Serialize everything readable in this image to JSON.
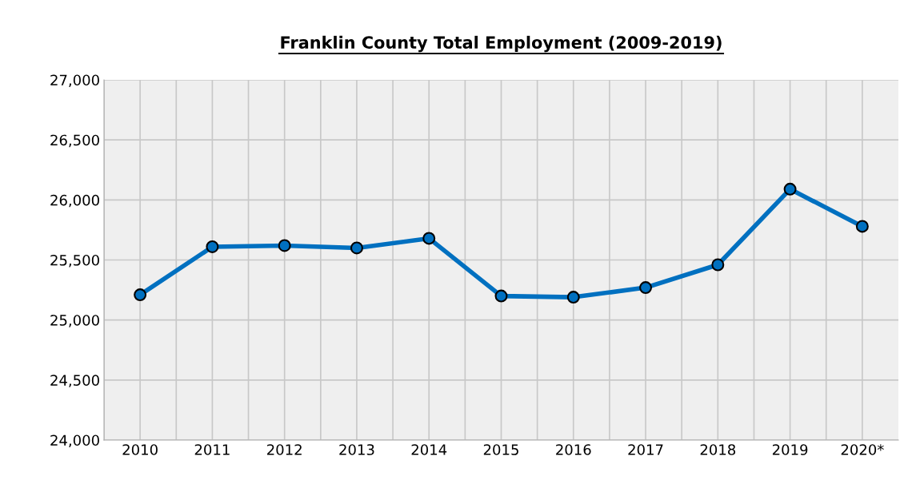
{
  "chart_data": {
    "type": "line",
    "title": "Franklin County Total Employment (2009-2019)",
    "categories": [
      "2010",
      "2011",
      "2012",
      "2013",
      "2014",
      "2015",
      "2016",
      "2017",
      "2018",
      "2019",
      "2020*"
    ],
    "series": [
      {
        "color": "#0070c0",
        "values": [
          25210,
          25610,
          25620,
          25600,
          25680,
          25200,
          25190,
          25270,
          25460,
          26090,
          25780
        ]
      }
    ],
    "ylim": [
      24000,
      27000
    ],
    "yticks": [
      {
        "value": 24000,
        "label": "24,000"
      },
      {
        "value": 24500,
        "label": "24,500"
      },
      {
        "value": 25000,
        "label": "25,000"
      },
      {
        "value": 25500,
        "label": "25,500"
      },
      {
        "value": 26000,
        "label": "26,000"
      },
      {
        "value": 26500,
        "label": "26,500"
      },
      {
        "value": 27000,
        "label": "27,000"
      }
    ],
    "grid": true,
    "marker": "circle",
    "line_style": "solid"
  }
}
